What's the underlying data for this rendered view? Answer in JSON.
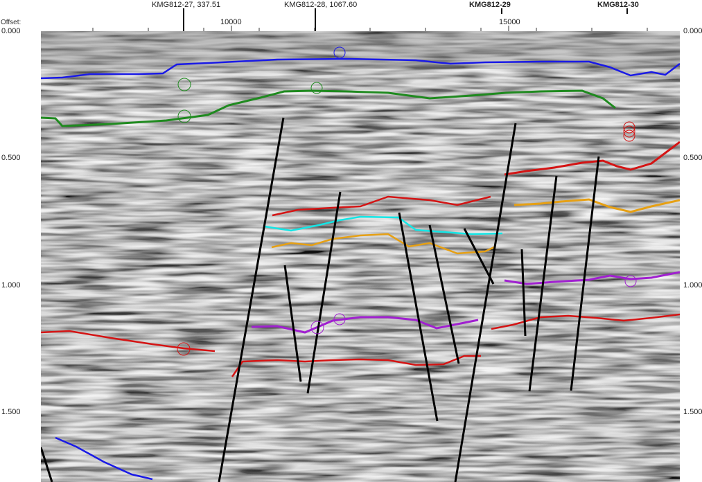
{
  "axis": {
    "offset_label": "Offset:",
    "x_ticks": [
      "10000",
      "15000"
    ],
    "y_ticks": [
      "0.000",
      "0.500",
      "1.000",
      "1.500"
    ]
  },
  "wells": [
    "KMG812-27, 337.51",
    "KMG812-28, 1067.60",
    "KMG812-29",
    "KMG812-30"
  ],
  "colors": {
    "horizon_blue": "#1a1ae6",
    "horizon_green": "#1f8a1f",
    "horizon_red": "#d41414",
    "horizon_orange": "#e6a014",
    "horizon_cyan": "#14e6e6",
    "horizon_purple": "#a020d0",
    "fault": "#000000"
  }
}
